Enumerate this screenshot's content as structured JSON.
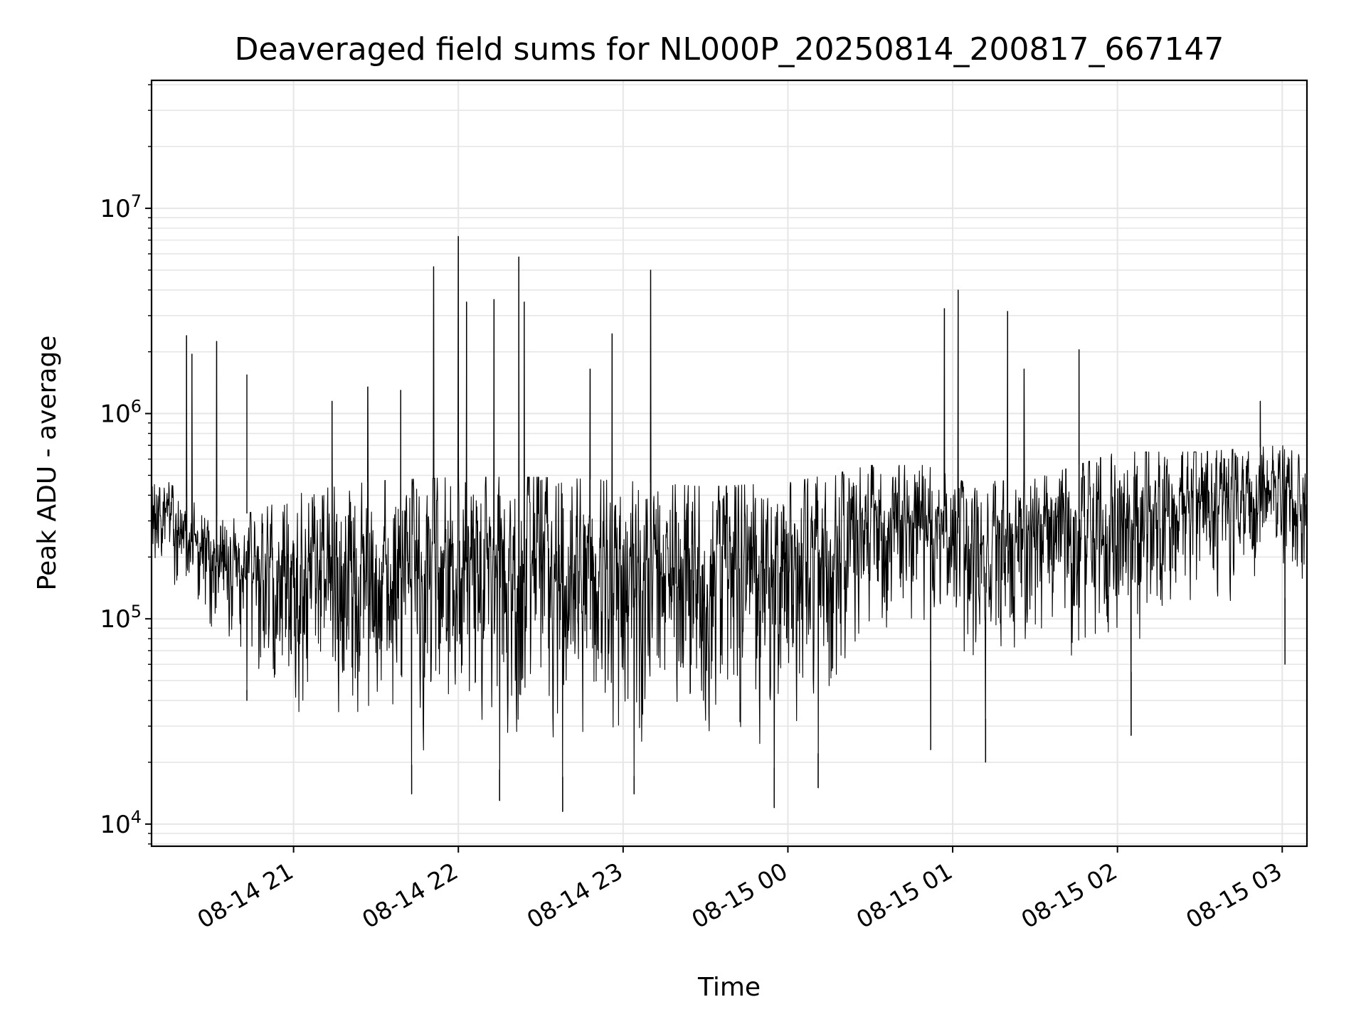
{
  "chart_data": {
    "type": "line",
    "title": "Deaveraged field sums for NL000P_20250814_200817_667147",
    "xlabel": "Time",
    "ylabel": "Peak ADU - average",
    "yscale": "log",
    "ylim": [
      7800,
      42000000
    ],
    "xlim": [
      "2025-08-14 20:08:17",
      "2025-08-15 03:09:00"
    ],
    "grid": true,
    "line_color": "#000000",
    "grid_color": "#e6e6e6",
    "xticks": [
      {
        "t": "2025-08-14 21:00",
        "label": "08-14 21"
      },
      {
        "t": "2025-08-14 22:00",
        "label": "08-14 22"
      },
      {
        "t": "2025-08-14 23:00",
        "label": "08-14 23"
      },
      {
        "t": "2025-08-15 00:00",
        "label": "08-15 00"
      },
      {
        "t": "2025-08-15 01:00",
        "label": "08-15 01"
      },
      {
        "t": "2025-08-15 02:00",
        "label": "08-15 02"
      },
      {
        "t": "2025-08-15 03:00",
        "label": "08-15 03"
      }
    ],
    "yticks": [
      {
        "v": 10000,
        "base": "10",
        "exp": "4"
      },
      {
        "v": 100000,
        "base": "10",
        "exp": "5"
      },
      {
        "v": 1000000,
        "base": "10",
        "exp": "6"
      },
      {
        "v": 10000000,
        "base": "10",
        "exp": "7"
      }
    ],
    "envelope": [
      {
        "t": "2025-08-14 20:08",
        "high": 550000,
        "low": 170000
      },
      {
        "t": "2025-08-14 20:20",
        "high": 400000,
        "low": 110000
      },
      {
        "t": "2025-08-14 20:35",
        "high": 300000,
        "low": 60000
      },
      {
        "t": "2025-08-14 20:50",
        "high": 350000,
        "low": 35000
      },
      {
        "t": "2025-08-14 21:05",
        "high": 420000,
        "low": 20000
      },
      {
        "t": "2025-08-14 21:30",
        "high": 470000,
        "low": 19000
      },
      {
        "t": "2025-08-14 22:00",
        "high": 490000,
        "low": 20000
      },
      {
        "t": "2025-08-14 22:30",
        "high": 490000,
        "low": 17000
      },
      {
        "t": "2025-08-14 23:00",
        "high": 470000,
        "low": 17000
      },
      {
        "t": "2025-08-14 23:30",
        "high": 440000,
        "low": 18000
      },
      {
        "t": "2025-08-15 00:00",
        "high": 460000,
        "low": 19000
      },
      {
        "t": "2025-08-15 00:20",
        "high": 520000,
        "low": 25000
      },
      {
        "t": "2025-08-15 00:30",
        "high": 560000,
        "low": 80000
      },
      {
        "t": "2025-08-15 00:50",
        "high": 560000,
        "low": 70000
      },
      {
        "t": "2025-08-15 01:05",
        "high": 460000,
        "low": 30000
      },
      {
        "t": "2025-08-15 01:30",
        "high": 480000,
        "low": 40000
      },
      {
        "t": "2025-08-15 02:00",
        "high": 650000,
        "low": 50000
      },
      {
        "t": "2025-08-15 02:30",
        "high": 650000,
        "low": 90000
      },
      {
        "t": "2025-08-15 03:00",
        "high": 700000,
        "low": 130000
      },
      {
        "t": "2025-08-15 03:09",
        "high": 600000,
        "low": 100000
      }
    ],
    "spikes": [
      {
        "t": "2025-08-14 20:21",
        "value": 2400000
      },
      {
        "t": "2025-08-14 20:23",
        "value": 1950000
      },
      {
        "t": "2025-08-14 20:32",
        "value": 2250000
      },
      {
        "t": "2025-08-14 20:43",
        "value": 1550000
      },
      {
        "t": "2025-08-14 21:14",
        "value": 1150000
      },
      {
        "t": "2025-08-14 21:27",
        "value": 1350000
      },
      {
        "t": "2025-08-14 21:39",
        "value": 1300000
      },
      {
        "t": "2025-08-14 21:51",
        "value": 5200000
      },
      {
        "t": "2025-08-14 22:00",
        "value": 7300000
      },
      {
        "t": "2025-08-14 22:03",
        "value": 3500000
      },
      {
        "t": "2025-08-14 22:13",
        "value": 3600000
      },
      {
        "t": "2025-08-14 22:22",
        "value": 5800000
      },
      {
        "t": "2025-08-14 22:24",
        "value": 3500000
      },
      {
        "t": "2025-08-14 22:48",
        "value": 1650000
      },
      {
        "t": "2025-08-14 22:56",
        "value": 2450000
      },
      {
        "t": "2025-08-14 23:10",
        "value": 5000000
      },
      {
        "t": "2025-08-15 00:57",
        "value": 3250000
      },
      {
        "t": "2025-08-15 01:02",
        "value": 4000000
      },
      {
        "t": "2025-08-15 01:20",
        "value": 3150000
      },
      {
        "t": "2025-08-15 01:26",
        "value": 1650000
      },
      {
        "t": "2025-08-15 01:46",
        "value": 2050000
      },
      {
        "t": "2025-08-15 02:52",
        "value": 1150000
      }
    ],
    "dips": [
      {
        "t": "2025-08-14 20:43",
        "value": 40000
      },
      {
        "t": "2025-08-14 21:43",
        "value": 14000
      },
      {
        "t": "2025-08-14 22:15",
        "value": 13000
      },
      {
        "t": "2025-08-14 22:38",
        "value": 11500
      },
      {
        "t": "2025-08-14 23:04",
        "value": 14000
      },
      {
        "t": "2025-08-14 23:55",
        "value": 12000
      },
      {
        "t": "2025-08-15 00:11",
        "value": 15000
      },
      {
        "t": "2025-08-15 00:52",
        "value": 23000
      },
      {
        "t": "2025-08-15 01:12",
        "value": 20000
      },
      {
        "t": "2025-08-15 02:05",
        "value": 27000
      },
      {
        "t": "2025-08-15 03:01",
        "value": 60000
      }
    ]
  }
}
